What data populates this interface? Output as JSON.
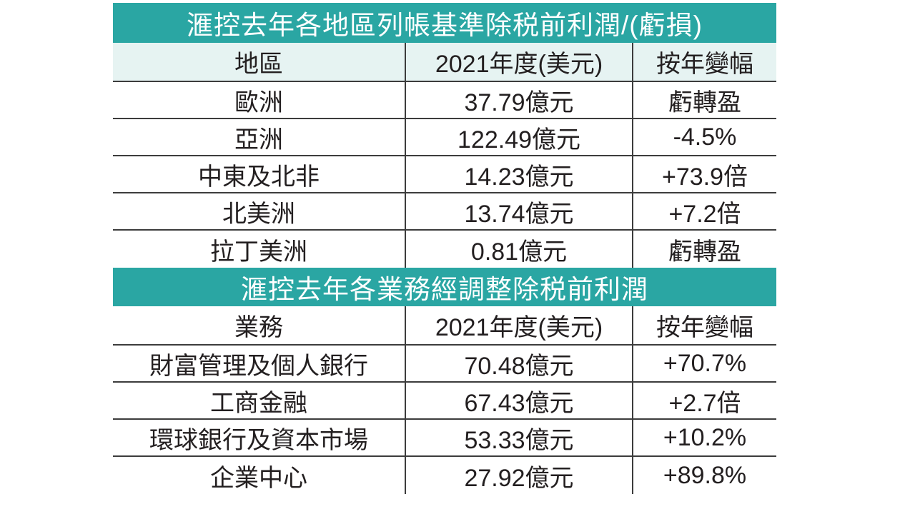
{
  "chart_data": [
    {
      "type": "table",
      "title": "滙控去年各地區列帳基準除税前利潤/(虧損)",
      "columns": [
        "地區",
        "2021年度(美元)",
        "按年變幅"
      ],
      "rows": [
        [
          "歐洲",
          "37.79億元",
          "虧轉盈"
        ],
        [
          "亞洲",
          "122.49億元",
          "-4.5%"
        ],
        [
          "中東及北非",
          "14.23億元",
          "+73.9倍"
        ],
        [
          "北美洲",
          "13.74億元",
          "+7.2倍"
        ],
        [
          "拉丁美洲",
          "0.81億元",
          "虧轉盈"
        ]
      ],
      "header_color": "#2aa6a3",
      "subheader_color": "#e6f3f2"
    },
    {
      "type": "table",
      "title": "滙控去年各業務經調整除税前利潤",
      "columns": [
        "業務",
        "2021年度(美元)",
        "按年變幅"
      ],
      "rows": [
        [
          "財富管理及個人銀行",
          "70.48億元",
          "+70.7%"
        ],
        [
          "工商金融",
          "67.43億元",
          "+2.7倍"
        ],
        [
          "環球銀行及資本市場",
          "53.33億元",
          "+10.2%"
        ],
        [
          "企業中心",
          "27.92億元",
          "+89.8%"
        ]
      ],
      "header_color": "#2aa6a3",
      "subheader_color": "#ffffff"
    }
  ]
}
